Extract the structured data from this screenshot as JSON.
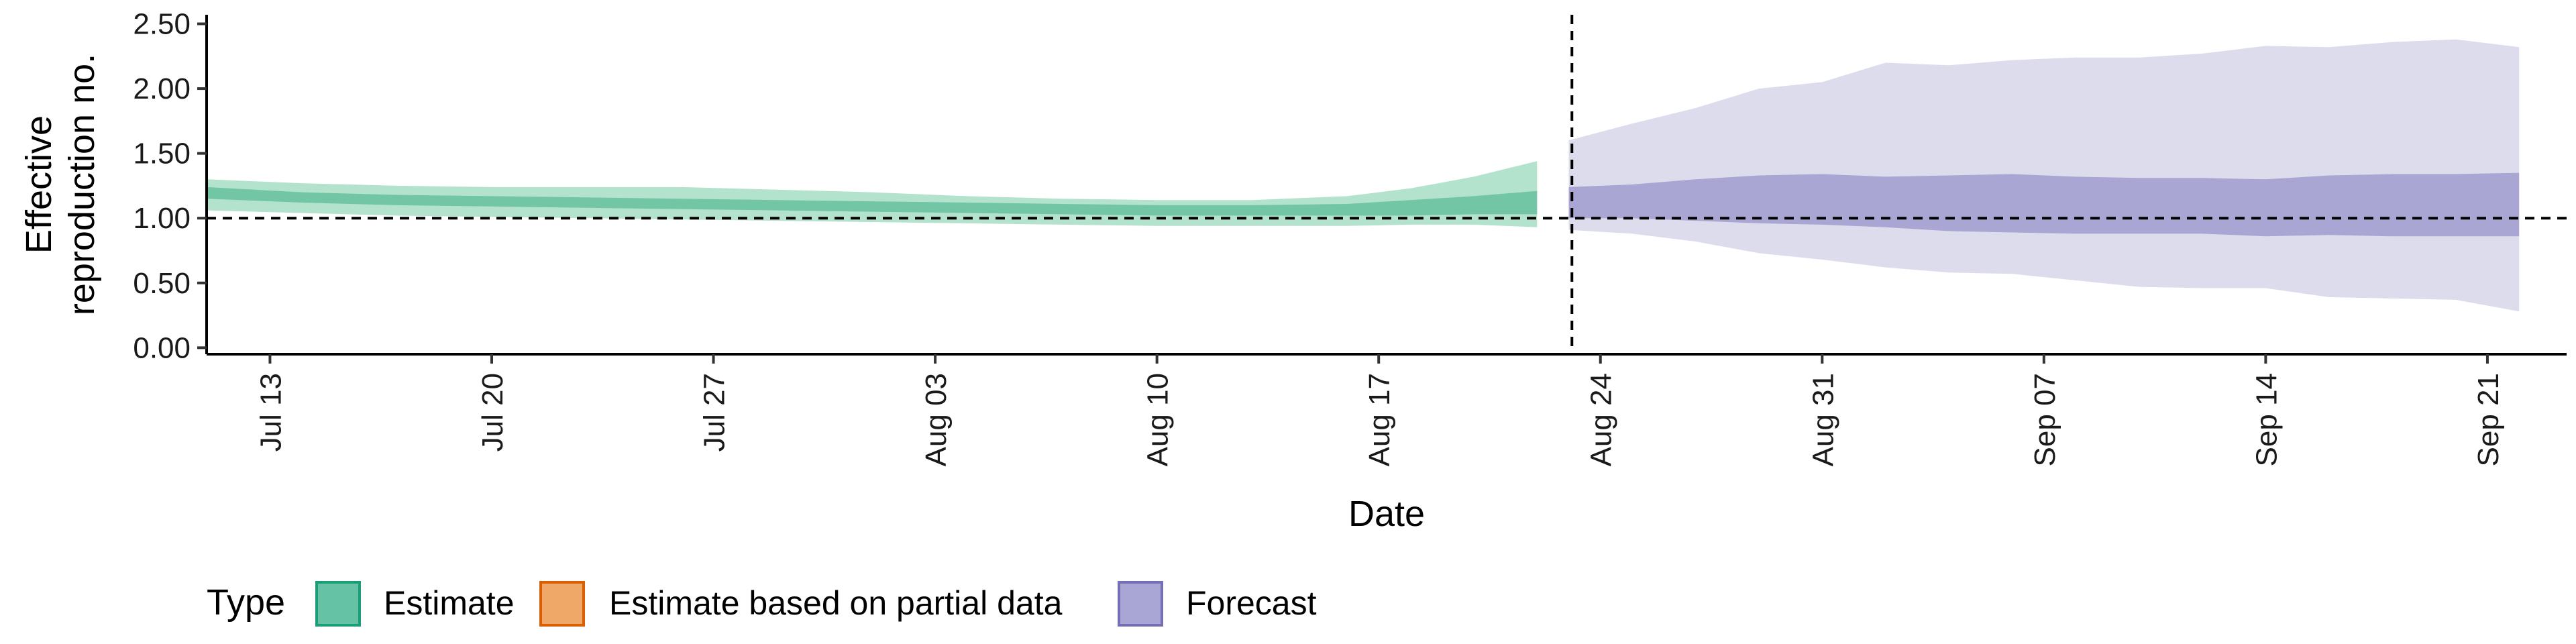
{
  "chart_data": {
    "type": "area",
    "xlabel": "Date",
    "ylabel_lines": [
      "Effective",
      "reproduction no."
    ],
    "ylim": [
      -0.05,
      2.57
    ],
    "yticks": [
      0.0,
      0.5,
      1.0,
      1.5,
      2.0,
      2.5
    ],
    "ytick_labels": [
      "0.00",
      "0.50",
      "1.00",
      "1.50",
      "2.00",
      "2.50"
    ],
    "xlim_days": [
      0,
      74.5
    ],
    "xticks": [
      {
        "day": 2,
        "label": "Jul 13"
      },
      {
        "day": 9,
        "label": "Jul 20"
      },
      {
        "day": 16,
        "label": "Jul 27"
      },
      {
        "day": 23,
        "label": "Aug 03"
      },
      {
        "day": 30,
        "label": "Aug 10"
      },
      {
        "day": 37,
        "label": "Aug 17"
      },
      {
        "day": 44,
        "label": "Aug 24"
      },
      {
        "day": 51,
        "label": "Aug 31"
      },
      {
        "day": 58,
        "label": "Sep 07"
      },
      {
        "day": 65,
        "label": "Sep 14"
      },
      {
        "day": 72,
        "label": "Sep 21"
      }
    ],
    "hline": 1.0,
    "vline_day": 43.1,
    "legend": {
      "title": "Type",
      "placement": "bottom",
      "items": [
        {
          "label": "Estimate",
          "fill": "#66c2a5",
          "stroke": "#1b9e77"
        },
        {
          "label": "Estimate based on partial data",
          "fill": "#f0a868",
          "stroke": "#d95f02"
        },
        {
          "label": "Forecast",
          "fill": "#a9a6d6",
          "stroke": "#7570b3"
        }
      ]
    },
    "series": [
      {
        "name": "Estimate",
        "color_outer": "#b3e2cd",
        "color_inner": "#72c6a6",
        "days": [
          0,
          3,
          6,
          9,
          12,
          15,
          18,
          21,
          24,
          27,
          30,
          33,
          36,
          38,
          40,
          42
        ],
        "outer_upper": [
          1.3,
          1.27,
          1.25,
          1.24,
          1.24,
          1.24,
          1.22,
          1.2,
          1.17,
          1.15,
          1.14,
          1.14,
          1.17,
          1.23,
          1.32,
          1.44
        ],
        "inner_upper": [
          1.24,
          1.2,
          1.18,
          1.17,
          1.16,
          1.15,
          1.14,
          1.13,
          1.12,
          1.11,
          1.1,
          1.1,
          1.11,
          1.14,
          1.17,
          1.21
        ],
        "inner_lower": [
          1.15,
          1.12,
          1.1,
          1.09,
          1.08,
          1.07,
          1.06,
          1.05,
          1.04,
          1.03,
          1.02,
          1.02,
          1.02,
          1.02,
          1.03,
          1.03
        ],
        "outer_lower": [
          1.06,
          1.04,
          1.02,
          1.01,
          1.0,
          0.99,
          0.98,
          0.97,
          0.96,
          0.95,
          0.94,
          0.94,
          0.94,
          0.95,
          0.95,
          0.93
        ]
      },
      {
        "name": "Forecast",
        "color_outer": "#dddcec",
        "color_inner": "#aaa6d4",
        "days": [
          43,
          45,
          47,
          49,
          51,
          53,
          55,
          57,
          59,
          61,
          63,
          65,
          67,
          69,
          71,
          73
        ],
        "outer_upper": [
          1.6,
          1.73,
          1.85,
          2.0,
          2.05,
          2.2,
          2.18,
          2.22,
          2.24,
          2.24,
          2.27,
          2.33,
          2.32,
          2.36,
          2.38,
          2.32
        ],
        "inner_upper": [
          1.24,
          1.26,
          1.3,
          1.33,
          1.34,
          1.32,
          1.33,
          1.34,
          1.32,
          1.31,
          1.31,
          1.3,
          1.33,
          1.34,
          1.34,
          1.35
        ],
        "inner_lower": [
          1.0,
          1.0,
          0.98,
          0.96,
          0.95,
          0.93,
          0.9,
          0.89,
          0.88,
          0.88,
          0.88,
          0.86,
          0.87,
          0.86,
          0.86,
          0.86
        ],
        "outer_lower": [
          0.91,
          0.88,
          0.82,
          0.73,
          0.68,
          0.62,
          0.58,
          0.57,
          0.52,
          0.47,
          0.46,
          0.46,
          0.39,
          0.38,
          0.37,
          0.28
        ]
      }
    ]
  }
}
